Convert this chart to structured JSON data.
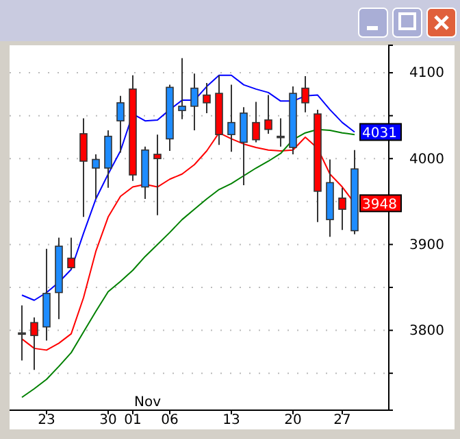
{
  "chart_data": {
    "type": "candlestick",
    "categories": [
      null,
      null,
      "23",
      null,
      null,
      null,
      null,
      "30",
      null,
      "01",
      null,
      null,
      "06",
      null,
      null,
      null,
      null,
      "13",
      null,
      null,
      null,
      null,
      "20",
      null,
      null,
      null,
      "27",
      null
    ],
    "ohlc": [
      [
        3797,
        3829,
        3765,
        3796
      ],
      [
        3809,
        3815,
        3754,
        3794
      ],
      [
        3804,
        3895,
        3788,
        3843
      ],
      [
        3844,
        3908,
        3813,
        3898
      ],
      [
        3884,
        3908,
        3871,
        3873
      ],
      [
        4029,
        4047,
        3932,
        3997
      ],
      [
        3989,
        4005,
        3953,
        3999
      ],
      [
        3989,
        4033,
        3966,
        4026
      ],
      [
        4044,
        4073,
        4007,
        4065
      ],
      [
        4081,
        4097,
        3974,
        3981
      ],
      [
        3967,
        4014,
        3953,
        4010
      ],
      [
        4005,
        4028,
        3934,
        4000
      ],
      [
        4023,
        4086,
        4009,
        4083
      ],
      [
        4056,
        4117,
        4046,
        4061
      ],
      [
        4061,
        4099,
        4033,
        4082
      ],
      [
        4074,
        4088,
        4053,
        4065
      ],
      [
        4076,
        4097,
        4016,
        4028
      ],
      [
        4028,
        4086,
        4008,
        4042
      ],
      [
        4019,
        4060,
        3969,
        4053
      ],
      [
        4042,
        4066,
        4019,
        4022
      ],
      [
        4045,
        4074,
        4029,
        4034
      ],
      [
        4026,
        4047,
        4014,
        4026
      ],
      [
        4013,
        4084,
        4005,
        4076
      ],
      [
        4082,
        4096,
        4054,
        4065
      ],
      [
        4052,
        4057,
        3926,
        3962
      ],
      [
        3929,
        3999,
        3909,
        3972
      ],
      [
        3954,
        3966,
        3917,
        3941
      ],
      [
        3916,
        4010,
        3912,
        3988
      ]
    ],
    "colors": [
      "#555555",
      "#ff0000",
      "#1e8cff",
      "#1e8cff",
      "#ff0000",
      "#ff0000",
      "#1e8cff",
      "#1e8cff",
      "#1e8cff",
      "#ff0000",
      "#1e8cff",
      "#ff0000",
      "#1e8cff",
      "#1e8cff",
      "#1e8cff",
      "#ff0000",
      "#ff0000",
      "#1e8cff",
      "#1e8cff",
      "#ff0000",
      "#ff0000",
      "#555555",
      "#1e8cff",
      "#ff0000",
      "#ff0000",
      "#1e8cff",
      "#ff0000",
      "#1e8cff"
    ],
    "series": [
      {
        "type": "line",
        "color": "#0000ff",
        "values": [
          3841,
          3835,
          3844,
          3856,
          3871,
          3913,
          3953,
          3982,
          4009,
          4052,
          4044,
          4045,
          4057,
          4068,
          4068,
          4084,
          4097,
          4097,
          4086,
          4081,
          4077,
          4067,
          4067,
          4073,
          4074,
          4057,
          4042,
          4031
        ],
        "value_labels": [
          null,
          null,
          null,
          null,
          null,
          null,
          null,
          null,
          null,
          null,
          null,
          null,
          null,
          null,
          null,
          null,
          null,
          null,
          null,
          null,
          null,
          null,
          null,
          null,
          null,
          null,
          null,
          "4031"
        ]
      },
      {
        "type": "line",
        "color": "#ff0000",
        "values": [
          3790,
          3779,
          3777,
          3785,
          3796,
          3838,
          3892,
          3932,
          3956,
          3967,
          3970,
          3967,
          3976,
          3982,
          3993,
          4009,
          4030,
          4023,
          4017,
          4013,
          4010,
          4009,
          4010,
          4025,
          4012,
          3982,
          3967,
          3948
        ],
        "value_labels": [
          null,
          null,
          null,
          null,
          null,
          null,
          null,
          null,
          null,
          null,
          null,
          null,
          null,
          null,
          null,
          null,
          null,
          null,
          null,
          null,
          null,
          null,
          null,
          null,
          null,
          null,
          null,
          "3948"
        ]
      },
      {
        "type": "line",
        "color": "#008000",
        "values": [
          3722,
          3732,
          3743,
          3758,
          3774,
          3798,
          3822,
          3845,
          3857,
          3870,
          3886,
          3900,
          3914,
          3929,
          3941,
          3953,
          3964,
          3971,
          3980,
          3989,
          3997,
          4006,
          4022,
          4030,
          4034,
          4033,
          4030,
          4028
        ]
      }
    ],
    "annotations": [
      "Nov"
    ],
    "ylim": [
      3707,
      4132
    ],
    "yticks": [
      {
        "value": 3750,
        "label": null
      },
      3800,
      {
        "value": 3850,
        "label": null
      },
      3900,
      {
        "value": 3950,
        "label": null
      },
      4000,
      {
        "value": 4050,
        "label": null
      },
      4100
    ],
    "grid": "y"
  }
}
